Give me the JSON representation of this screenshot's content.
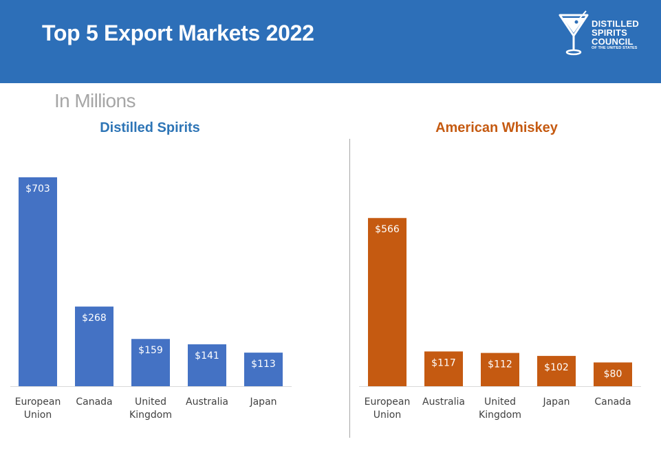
{
  "header": {
    "title": "Top 5 Export Markets 2022"
  },
  "logo": {
    "line1": "DISTILLED",
    "line2": "SPIRITS",
    "line3": "COUNCIL",
    "line4": "OF THE UNITED STATES",
    "icon": "martini-glass-icon"
  },
  "subtitle": "In Millions",
  "colors": {
    "header_bg": "#2d6fb8",
    "spirits": "#4472c4",
    "whiskey": "#c55a11",
    "spirits_title": "#2e75b6"
  },
  "chart_data": [
    {
      "type": "bar",
      "title": "Distilled Spirits",
      "categories": [
        "European Union",
        "Canada",
        "United Kingdom",
        "Australia",
        "Japan"
      ],
      "category_lines": [
        [
          "European",
          "Union"
        ],
        [
          "Canada"
        ],
        [
          "United",
          "Kingdom"
        ],
        [
          "Australia"
        ],
        [
          "Japan"
        ]
      ],
      "values": [
        703,
        268,
        159,
        141,
        113
      ],
      "value_labels": [
        "$703",
        "$268",
        "$159",
        "$141",
        "$113"
      ],
      "ylim": [
        0,
        703
      ],
      "grid": false,
      "color": "#4472c4"
    },
    {
      "type": "bar",
      "title": "American Whiskey",
      "categories": [
        "European Union",
        "Australia",
        "United Kingdom",
        "Japan",
        "Canada"
      ],
      "category_lines": [
        [
          "European",
          "Union"
        ],
        [
          "Australia"
        ],
        [
          "United",
          "Kingdom"
        ],
        [
          "Japan"
        ],
        [
          "Canada"
        ]
      ],
      "values": [
        566,
        117,
        112,
        102,
        80
      ],
      "value_labels": [
        "$566",
        "$117",
        "$112",
        "$102",
        "$80"
      ],
      "ylim": [
        0,
        703
      ],
      "grid": false,
      "color": "#c55a11"
    }
  ]
}
